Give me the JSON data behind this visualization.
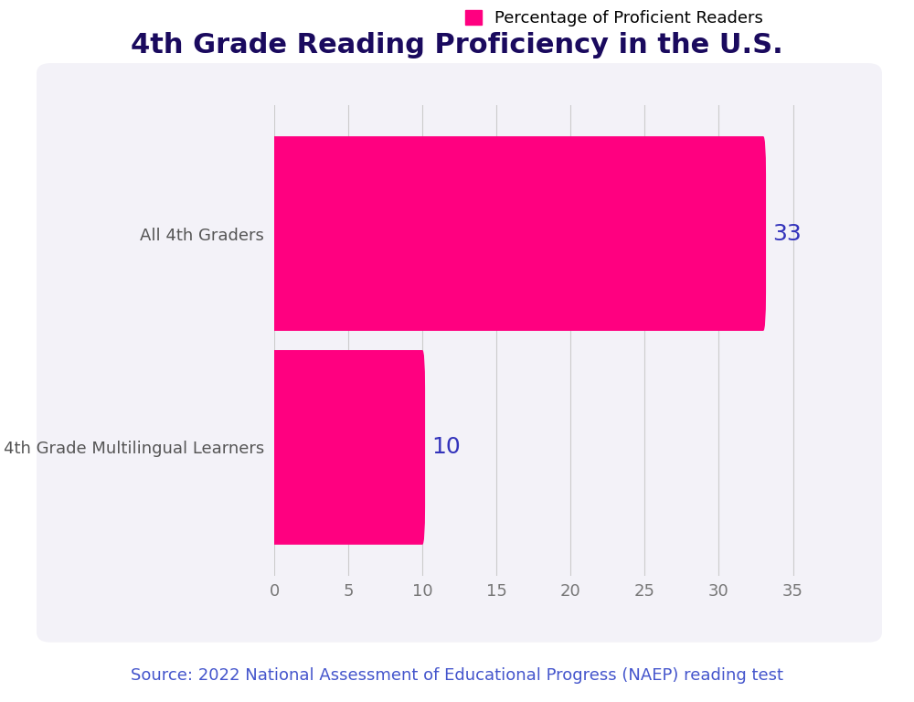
{
  "title": "4th Grade Reading Proficiency in the U.S.",
  "title_color": "#1a0a5e",
  "title_fontsize": 22,
  "title_fontweight": "bold",
  "categories": [
    "4th Grade Multilingual Learners",
    "All 4th Graders"
  ],
  "values": [
    10,
    33
  ],
  "bar_color": "#FF0080",
  "value_label_color": "#3333bb",
  "value_label_fontsize": 18,
  "legend_label": "Percentage of Proficient Readers",
  "legend_color": "#FF0080",
  "xlim": [
    0,
    37
  ],
  "xticks": [
    0,
    5,
    10,
    15,
    20,
    25,
    30,
    35
  ],
  "ytick_label_color": "#555555",
  "tick_label_color": "#777777",
  "tick_fontsize": 13,
  "ytick_fontsize": 13,
  "grid_color": "#cccccc",
  "background_color": "#f3f2f8",
  "outer_background": "#ffffff",
  "source_text": "Source: 2022 National Assessment of Educational Progress (NAEP) reading test",
  "source_color": "#4455cc",
  "source_fontsize": 13,
  "bar_height": 0.55
}
